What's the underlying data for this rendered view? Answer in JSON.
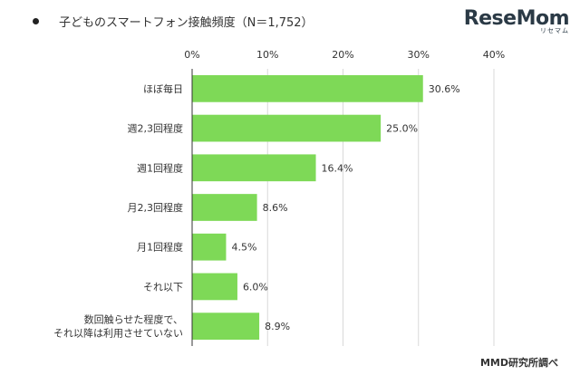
{
  "header": {
    "title": "子どものスマートフォン接触頻度（N＝1,752）"
  },
  "logo": {
    "main": "ReseMom",
    "sub": "リセマム"
  },
  "credit": "MMD研究所調べ",
  "colors": {
    "bar": "#7ed957",
    "axis": "#333333",
    "grid": "#d9d9d9"
  },
  "chart_data": {
    "type": "bar",
    "orientation": "horizontal",
    "title": "子どものスマートフォン接触頻度（N＝1,752）",
    "categories": [
      [
        "ほぼ毎日"
      ],
      [
        "週2,3回程度"
      ],
      [
        "週1回程度"
      ],
      [
        "月2,3回程度"
      ],
      [
        "月1回程度"
      ],
      [
        "それ以下"
      ],
      [
        "数回触らせた程度で、",
        "それ以降は利用させていない"
      ]
    ],
    "values": [
      30.6,
      25.0,
      16.4,
      8.6,
      4.5,
      6.0,
      8.9
    ],
    "value_labels": [
      "30.6%",
      "25.0%",
      "16.4%",
      "8.6%",
      "4.5%",
      "6.0%",
      "8.9%"
    ],
    "xlim": [
      0,
      40
    ],
    "ticks": [
      0,
      10,
      20,
      30,
      40
    ],
    "tick_labels": [
      "0%",
      "10%",
      "20%",
      "30%",
      "40%"
    ],
    "grid": true,
    "legend": "none"
  }
}
